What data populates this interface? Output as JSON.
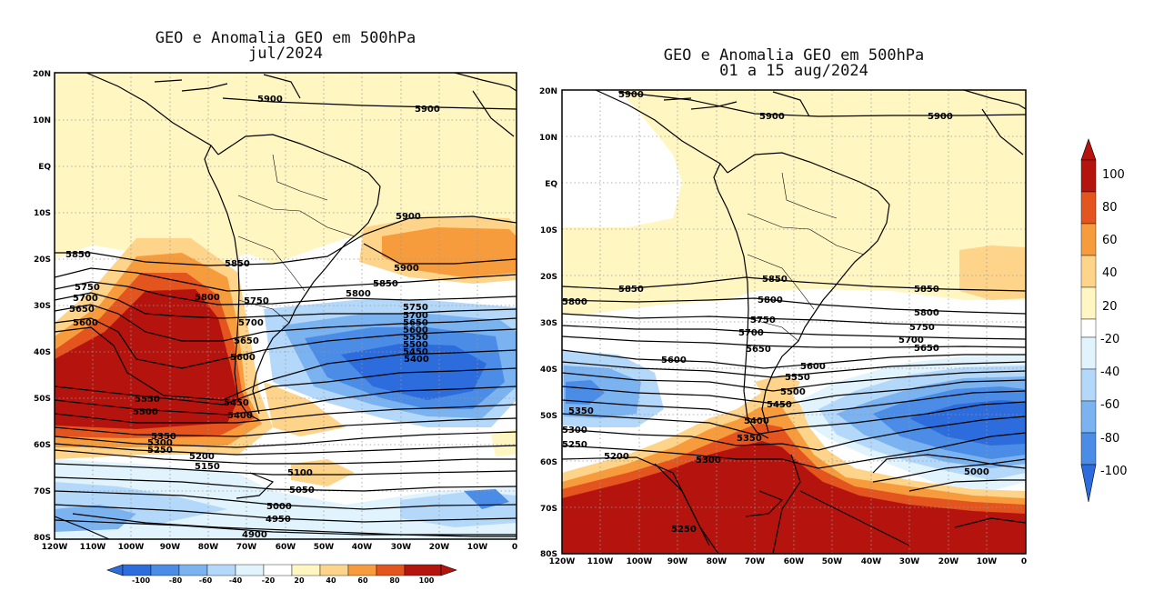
{
  "panels": [
    {
      "title_line1": "GEO e Anomalia GEO em 500hPa",
      "title_line2": "jul/2024",
      "lat_labels": [
        "20N",
        "10N",
        "EQ",
        "10S",
        "20S",
        "30S",
        "40S",
        "50S",
        "60S",
        "70S",
        "80S"
      ],
      "lon_labels": [
        "120W",
        "110W",
        "100W",
        "90W",
        "80W",
        "70W",
        "60W",
        "50W",
        "40W",
        "30W",
        "20W",
        "10W",
        "0"
      ],
      "contour_labels": [
        "5900",
        "5900",
        "5900",
        "5900",
        "5850",
        "5850",
        "5850",
        "5800",
        "5800",
        "5750",
        "5750",
        "5700",
        "5700",
        "5650",
        "5650",
        "5600",
        "5600",
        "5550",
        "5500",
        "5450",
        "5400",
        "5400",
        "5350",
        "5300",
        "5250",
        "5200",
        "5150",
        "5100",
        "5050",
        "5000",
        "4950",
        "4900",
        "5750",
        "5700",
        "5650",
        "5600",
        "5550",
        "5500",
        "5450"
      ]
    },
    {
      "title_line1": "GEO e Anomalia GEO em 500hPa",
      "title_line2": "01 a 15 aug/2024",
      "lat_labels": [
        "20N",
        "10N",
        "EQ",
        "10S",
        "20S",
        "30S",
        "40S",
        "50S",
        "60S",
        "70S",
        "80S"
      ],
      "lon_labels": [
        "120W",
        "110W",
        "100W",
        "90W",
        "80W",
        "70W",
        "60W",
        "50W",
        "40W",
        "30W",
        "20W",
        "10W",
        "0"
      ],
      "contour_labels": [
        "5900",
        "5900",
        "5900",
        "5850",
        "5850",
        "5850",
        "5800",
        "5800",
        "5800",
        "5750",
        "5750",
        "5700",
        "5700",
        "5650",
        "5650",
        "5600",
        "5600",
        "5550",
        "5500",
        "5450",
        "5400",
        "5350",
        "5350",
        "5300",
        "5300",
        "5250",
        "5200",
        "5250",
        "5000"
      ]
    }
  ],
  "colorbar_bottom": {
    "labels": [
      "-100",
      "-80",
      "-60",
      "-40",
      "-20",
      "20",
      "40",
      "60",
      "80",
      "100"
    ]
  },
  "colorbar_right": {
    "labels": [
      "100",
      "80",
      "60",
      "40",
      "20",
      "-20",
      "-40",
      "-60",
      "-80",
      "-100"
    ]
  },
  "palette": {
    "neg100": "#2c6cdc",
    "neg80": "#4a8ce6",
    "neg60": "#7bb2f0",
    "neg40": "#b4d8fa",
    "neg20": "#e1f3fd",
    "zero": "#ffffff",
    "pos20": "#fff6c2",
    "pos40": "#fdd48a",
    "pos60": "#f79c3c",
    "pos80": "#e4541e",
    "pos100": "#b5140e",
    "land": "#000000"
  }
}
